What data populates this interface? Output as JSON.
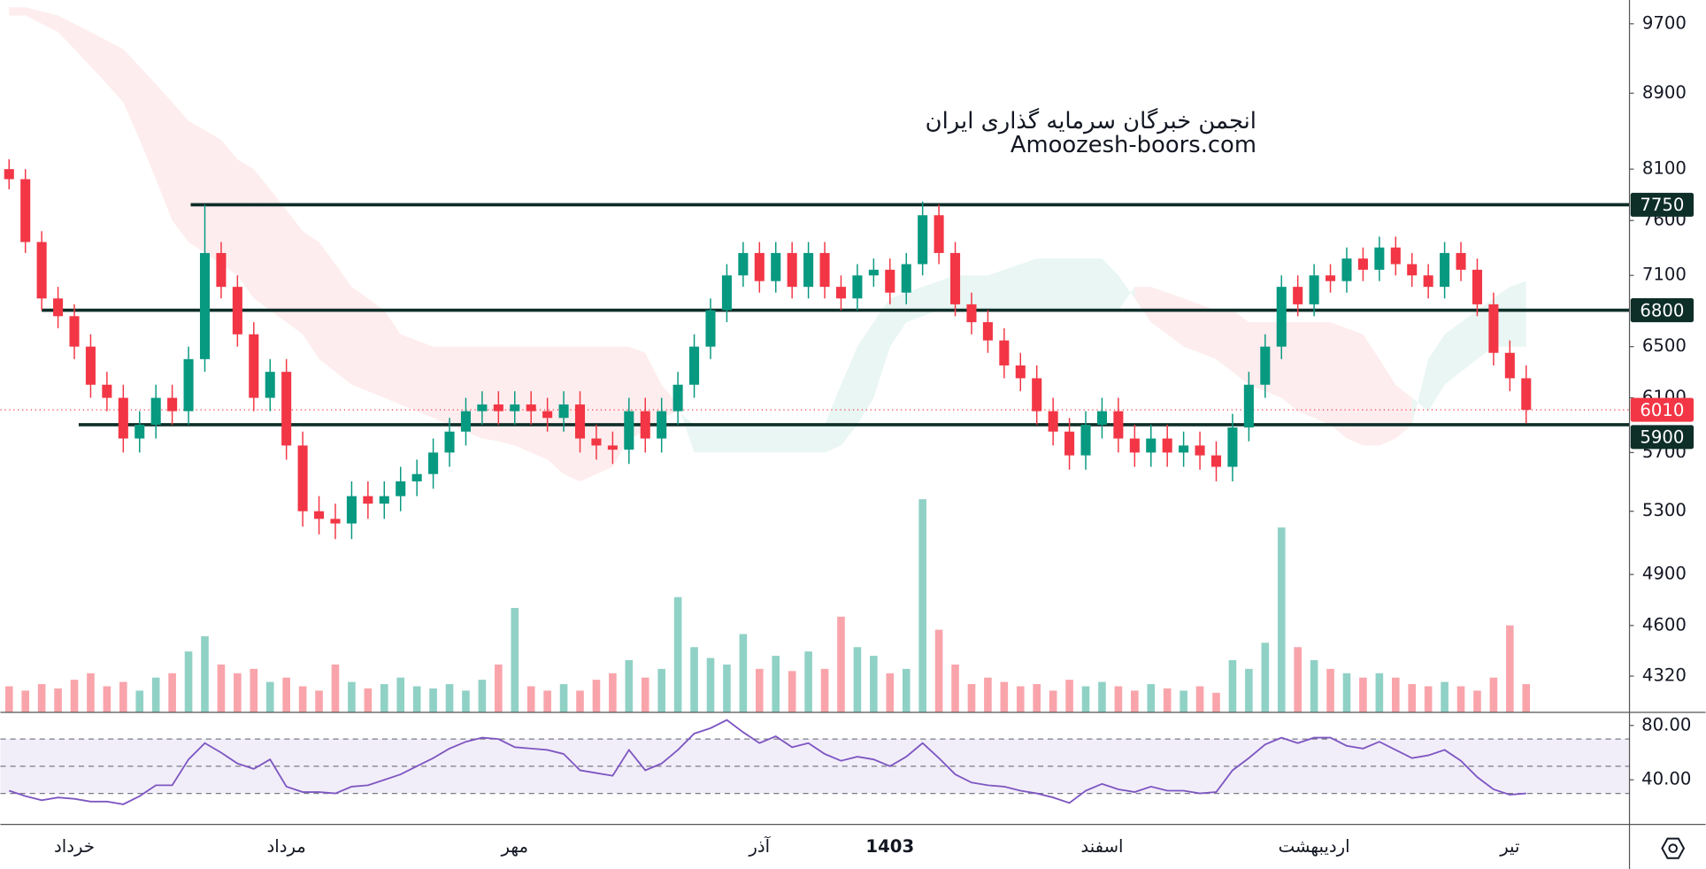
{
  "chart_data": {
    "type": "candlestick",
    "title": "انجمن خبرگان سرمایه گذاری ایران",
    "subtitle": "Amoozesh-boors.com",
    "categories": [
      null,
      null,
      null,
      null,
      "خرداد",
      null,
      null,
      null,
      null,
      null,
      null,
      null,
      null,
      null,
      null,
      null,
      null,
      "مرداد",
      null,
      null,
      null,
      null,
      null,
      null,
      null,
      null,
      null,
      null,
      null,
      null,
      null,
      "مهر",
      null,
      null,
      null,
      null,
      null,
      null,
      null,
      null,
      null,
      null,
      null,
      null,
      null,
      null,
      "آذر",
      null,
      null,
      null,
      null,
      null,
      null,
      null,
      "1403",
      null,
      null,
      null,
      null,
      null,
      null,
      null,
      null,
      null,
      null,
      null,
      null,
      "اسفند",
      null,
      null,
      null,
      null,
      null,
      null,
      null,
      null,
      null,
      null,
      null,
      null,
      "اردیبهشت",
      null,
      null,
      null,
      null,
      null,
      null,
      null,
      null,
      null,
      null,
      null,
      "تیر",
      null
    ],
    "open": [
      8100,
      8000,
      7400,
      6900,
      6750,
      6500,
      6200,
      6100,
      5800,
      5900,
      6100,
      6000,
      6400,
      7300,
      7000,
      6600,
      6100,
      6300,
      5750,
      5300,
      5250,
      5220,
      5400,
      5350,
      5400,
      5500,
      5550,
      5700,
      5850,
      6000,
      6050,
      6000,
      6050,
      6000,
      5950,
      6050,
      5800,
      5750,
      5720,
      6000,
      5800,
      6000,
      6200,
      6500,
      6800,
      7100,
      7300,
      7050,
      7300,
      7000,
      7300,
      7000,
      6900,
      7100,
      7150,
      6950,
      7200,
      7650,
      7300,
      6850,
      6700,
      6550,
      6350,
      6250,
      6000,
      5850,
      5680,
      5900,
      6000,
      5800,
      5700,
      5800,
      5700,
      5750,
      5680,
      5600,
      5880,
      6200,
      6500,
      7000,
      6850,
      7100,
      7050,
      7250,
      7150,
      7350,
      7200,
      7100,
      7000,
      7300,
      7150,
      6850,
      6450,
      6250
    ],
    "high": [
      8200,
      8100,
      7500,
      7000,
      6850,
      6600,
      6300,
      6200,
      6000,
      6200,
      6200,
      6500,
      7750,
      7400,
      7100,
      6700,
      6400,
      6400,
      5850,
      5400,
      5350,
      5500,
      5500,
      5500,
      5600,
      5650,
      5800,
      5950,
      6100,
      6150,
      6150,
      6150,
      6150,
      6100,
      6150,
      6150,
      5900,
      5850,
      6100,
      6100,
      6100,
      6300,
      6600,
      6900,
      7200,
      7400,
      7400,
      7400,
      7400,
      7400,
      7400,
      7100,
      7200,
      7250,
      7250,
      7300,
      7780,
      7750,
      7400,
      6950,
      6800,
      6650,
      6450,
      6350,
      6100,
      5950,
      6000,
      6100,
      6100,
      5900,
      5900,
      5900,
      5850,
      5850,
      5780,
      5980,
      6300,
      6600,
      7100,
      7100,
      7200,
      7200,
      7350,
      7350,
      7450,
      7450,
      7300,
      7200,
      7400,
      7400,
      7250,
      6950,
      6550,
      6350
    ],
    "low": [
      7900,
      7300,
      6800,
      6650,
      6400,
      6100,
      6000,
      5700,
      5700,
      5800,
      5900,
      5900,
      6300,
      6900,
      6500,
      6000,
      6000,
      5650,
      5200,
      5150,
      5120,
      5120,
      5250,
      5250,
      5300,
      5400,
      5450,
      5600,
      5750,
      5900,
      5900,
      5900,
      5900,
      5850,
      5850,
      5700,
      5650,
      5620,
      5620,
      5700,
      5700,
      5900,
      6100,
      6400,
      6700,
      7000,
      6950,
      6950,
      6900,
      6900,
      6900,
      6800,
      6800,
      7000,
      6850,
      6850,
      7100,
      7200,
      6750,
      6600,
      6450,
      6250,
      6150,
      5900,
      5750,
      5580,
      5580,
      5800,
      5700,
      5600,
      5600,
      5600,
      5600,
      5580,
      5500,
      5500,
      5780,
      6100,
      6400,
      6750,
      6750,
      6950,
      6950,
      7050,
      7050,
      7100,
      7000,
      6900,
      6900,
      7050,
      6750,
      6350,
      6150,
      5910
    ],
    "close": [
      8000,
      7400,
      6900,
      6750,
      6500,
      6200,
      6100,
      5800,
      5900,
      6100,
      6000,
      6400,
      7300,
      7000,
      6600,
      6100,
      6300,
      5750,
      5300,
      5250,
      5220,
      5400,
      5350,
      5400,
      5500,
      5550,
      5700,
      5850,
      6000,
      6050,
      6000,
      6050,
      6000,
      5950,
      6050,
      5800,
      5750,
      5720,
      6000,
      5800,
      6000,
      6200,
      6500,
      6800,
      7100,
      7300,
      7050,
      7300,
      7000,
      7300,
      7000,
      6900,
      7100,
      7150,
      6950,
      7200,
      7650,
      7300,
      6850,
      6700,
      6550,
      6350,
      6250,
      6000,
      5850,
      5680,
      5900,
      6000,
      5800,
      5700,
      5800,
      5700,
      5750,
      5680,
      5600,
      5880,
      6200,
      6500,
      7000,
      6850,
      7100,
      7050,
      7250,
      7150,
      7350,
      7200,
      7100,
      7000,
      7300,
      7150,
      6850,
      6450,
      6250,
      6010
    ],
    "up_color": "#089981",
    "down_color": "#f23645",
    "log_scale": true,
    "ylim": [
      4130,
      9990
    ],
    "yticks": [
      9700,
      8900,
      8100,
      7600,
      7100,
      6500,
      6100,
      5700,
      5300,
      4900,
      4600,
      4320
    ],
    "levels": [
      7750,
      6800,
      5900
    ],
    "level_color": "#0e2e28",
    "volume": {
      "values": [
        1.2,
        1.0,
        1.3,
        1.1,
        1.5,
        1.8,
        1.2,
        1.4,
        1.0,
        1.6,
        1.8,
        2.8,
        3.5,
        2.2,
        1.8,
        2.0,
        1.4,
        1.6,
        1.2,
        1.0,
        2.2,
        1.4,
        1.1,
        1.3,
        1.6,
        1.2,
        1.1,
        1.3,
        1.0,
        1.5,
        2.2,
        4.8,
        1.2,
        1.0,
        1.3,
        1.0,
        1.5,
        1.8,
        2.4,
        1.6,
        2.0,
        5.3,
        3.0,
        2.5,
        2.2,
        3.6,
        2.0,
        2.6,
        1.9,
        2.8,
        2.0,
        4.4,
        3.0,
        2.6,
        1.8,
        2.0,
        9.8,
        3.8,
        2.2,
        1.3,
        1.6,
        1.4,
        1.2,
        1.3,
        1.0,
        1.5,
        1.2,
        1.4,
        1.2,
        1.0,
        1.3,
        1.1,
        1.0,
        1.2,
        0.9,
        2.4,
        2.0,
        3.2,
        8.5,
        3.0,
        2.4,
        2.0,
        1.8,
        1.6,
        1.8,
        1.6,
        1.3,
        1.2,
        1.4,
        1.2,
        1.0,
        1.6,
        4.0,
        1.3
      ],
      "ylim": [
        0,
        12
      ],
      "up_color": "rgba(8,153,129,0.45)",
      "down_color": "rgba(242,54,69,0.45)"
    },
    "cloud": {
      "span_a": [
        9800,
        9800,
        9700,
        9600,
        9400,
        9200,
        9000,
        8800,
        8400,
        8000,
        7600,
        7400,
        7300,
        7200,
        7100,
        6900,
        6800,
        6700,
        6600,
        6400,
        6300,
        6200,
        6150,
        6100,
        6050,
        6000,
        5950,
        5900,
        5850,
        5800,
        5780,
        5750,
        5700,
        5650,
        5550,
        5500,
        5550,
        5600,
        5800,
        5850,
        5950,
        6000,
        5900,
        5900,
        5900,
        5900,
        5900,
        5900,
        5900,
        5900,
        5900,
        6200,
        6500,
        6700,
        6900,
        6950,
        7000,
        7050,
        7100,
        7100,
        7100,
        7150,
        7200,
        7250,
        7250,
        7250,
        7250,
        7250,
        7100,
        6900,
        6700,
        6600,
        6500,
        6450,
        6400,
        6300,
        6200,
        6150,
        6100,
        6000,
        5950,
        5900,
        5800,
        5750,
        5750,
        5800,
        5900,
        6400,
        6600,
        6700,
        6800,
        6900,
        7000,
        7050
      ],
      "span_b": [
        9900,
        9900,
        9850,
        9800,
        9700,
        9600,
        9500,
        9400,
        9200,
        9000,
        8800,
        8600,
        8500,
        8400,
        8200,
        8100,
        7900,
        7700,
        7500,
        7400,
        7200,
        7000,
        6900,
        6800,
        6600,
        6550,
        6500,
        6500,
        6500,
        6500,
        6500,
        6500,
        6500,
        6500,
        6500,
        6500,
        6500,
        6500,
        6500,
        6450,
        6200,
        6050,
        5700,
        5700,
        5700,
        5700,
        5700,
        5700,
        5700,
        5700,
        5700,
        5750,
        5900,
        6100,
        6500,
        6700,
        6750,
        6800,
        6800,
        6800,
        6800,
        6800,
        6800,
        6800,
        6800,
        6800,
        6800,
        6800,
        6800,
        7000,
        7000,
        6950,
        6900,
        6850,
        6800,
        6800,
        6700,
        6700,
        6700,
        6700,
        6700,
        6700,
        6650,
        6600,
        6400,
        6200,
        6100,
        6000,
        6200,
        6300,
        6400,
        6500,
        6500,
        6500
      ],
      "up_color": "rgba(8,153,129,0.09)",
      "down_color": "rgba(242,54,69,0.09)"
    },
    "rsi": {
      "values": [
        32,
        28,
        25,
        27,
        26,
        24,
        24,
        22,
        28,
        36,
        36,
        55,
        67,
        60,
        52,
        48,
        55,
        35,
        31,
        31,
        30,
        35,
        36,
        40,
        44,
        50,
        56,
        63,
        68,
        71,
        70,
        64,
        63,
        62,
        59,
        47,
        45,
        43,
        62,
        47,
        52,
        62,
        74,
        78,
        84,
        75,
        67,
        72,
        64,
        67,
        59,
        54,
        57,
        55,
        50,
        57,
        67,
        56,
        44,
        38,
        36,
        35,
        32,
        30,
        27,
        23,
        32,
        37,
        33,
        31,
        35,
        32,
        32,
        30,
        31,
        47,
        56,
        66,
        71,
        67,
        71,
        71,
        65,
        63,
        68,
        62,
        56,
        58,
        62,
        54,
        42,
        33,
        29,
        30
      ],
      "ylim": [
        7.2,
        89.6
      ],
      "yticks": [
        {
          "value": 80,
          "label": "80.00"
        },
        {
          "value": 40,
          "label": "40.00"
        }
      ],
      "bands": [
        70,
        50,
        30
      ],
      "color": "#7e57c2",
      "band_color": "rgba(126,87,194,0.1)"
    }
  }
}
